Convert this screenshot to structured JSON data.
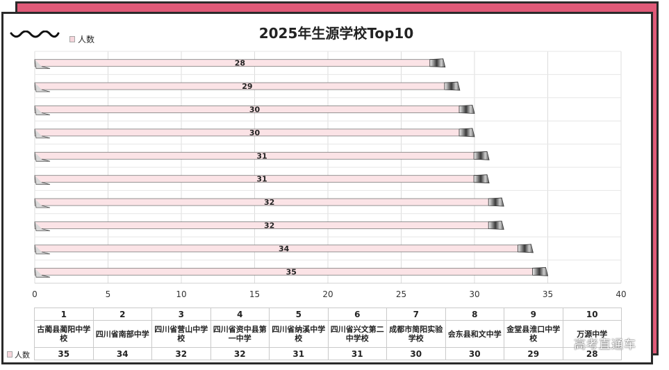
{
  "watermark": "高考直通车",
  "colors": {
    "accent": "#e05a78",
    "bar_fill": "#fbe3e6",
    "bar_cap": "#5b5b5b"
  },
  "chart_data": {
    "type": "bar",
    "orientation": "horizontal",
    "title": "2025年生源学校Top10",
    "legend": [
      "人数"
    ],
    "legend_position": "top-left",
    "xlim": [
      0,
      40
    ],
    "x_ticks": [
      "0",
      "5",
      "10",
      "15",
      "20",
      "25",
      "30",
      "35",
      "40"
    ],
    "grid": true,
    "ranks": [
      "1",
      "2",
      "3",
      "4",
      "5",
      "6",
      "7",
      "8",
      "9",
      "10"
    ],
    "categories": [
      "古蔺县蔺阳中学校",
      "四川省南部中学",
      "四川省营山中学校",
      "四川省资中县第一中学",
      "四川省纳溪中学校",
      "四川省兴文第二中学校",
      "成都市简阳实验学校",
      "会东县和文中学",
      "金堂县淮口中学校",
      "万源中学"
    ],
    "series": [
      {
        "name": "人数",
        "values": [
          35,
          34,
          32,
          32,
          31,
          31,
          30,
          30,
          29,
          28
        ]
      }
    ],
    "table_row_label": "人数"
  }
}
